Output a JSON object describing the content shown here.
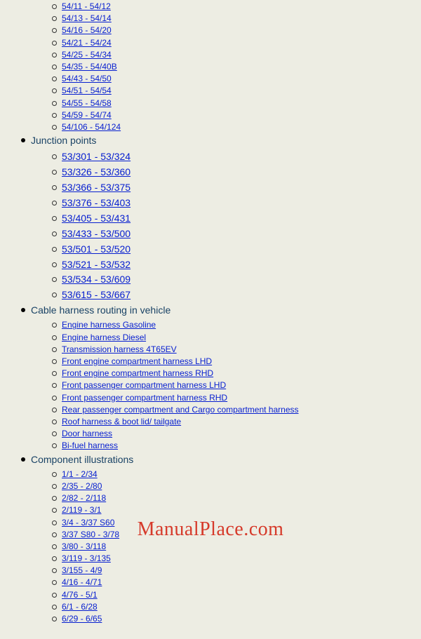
{
  "colors": {
    "background": "#edede3",
    "heading": "#194265",
    "link": "#0820d0",
    "bullet_solid": "#000000",
    "bullet_outline": "#333333",
    "watermark": "#d63a2a"
  },
  "typography": {
    "link_small_font_size": 12,
    "link_big_font_size": 14,
    "heading_font_size": 14,
    "watermark_font_size": 28,
    "font_family": "Arial, Helvetica, sans-serif",
    "watermark_font_family": "Georgia, Times New Roman, serif"
  },
  "watermark": "ManualPlace.com",
  "items": [
    {
      "label": "54/11 - 54/12",
      "level": 2,
      "variant": "small",
      "type": "link"
    },
    {
      "label": "54/13 - 54/14",
      "level": 2,
      "variant": "small",
      "type": "link"
    },
    {
      "label": "54/16 - 54/20",
      "level": 2,
      "variant": "small",
      "type": "link"
    },
    {
      "label": "54/21 - 54/24",
      "level": 2,
      "variant": "small",
      "type": "link"
    },
    {
      "label": "54/25 - 54/34",
      "level": 2,
      "variant": "small",
      "type": "link"
    },
    {
      "label": "54/35 - 54/40B",
      "level": 2,
      "variant": "small",
      "type": "link"
    },
    {
      "label": "54/43 - 54/50",
      "level": 2,
      "variant": "small",
      "type": "link"
    },
    {
      "label": "54/51 - 54/54",
      "level": 2,
      "variant": "small",
      "type": "link"
    },
    {
      "label": "54/55 - 54/58",
      "level": 2,
      "variant": "small",
      "type": "link"
    },
    {
      "label": "54/59 - 54/74",
      "level": 2,
      "variant": "small",
      "type": "link"
    },
    {
      "label": "54/106 - 54/124",
      "level": 2,
      "variant": "small",
      "type": "link"
    },
    {
      "label": "Junction points",
      "level": 1,
      "variant": "heading",
      "type": "heading"
    },
    {
      "label": "53/301 - 53/324",
      "level": 2,
      "variant": "big",
      "type": "link"
    },
    {
      "label": "53/326 - 53/360",
      "level": 2,
      "variant": "big",
      "type": "link"
    },
    {
      "label": "53/366 - 53/375",
      "level": 2,
      "variant": "big",
      "type": "link"
    },
    {
      "label": "53/376 - 53/403",
      "level": 2,
      "variant": "big",
      "type": "link"
    },
    {
      "label": "53/405 - 53/431",
      "level": 2,
      "variant": "big",
      "type": "link"
    },
    {
      "label": "53/433 - 53/500",
      "level": 2,
      "variant": "big",
      "type": "link"
    },
    {
      "label": "53/501 - 53/520",
      "level": 2,
      "variant": "big",
      "type": "link"
    },
    {
      "label": "53/521 - 53/532",
      "level": 2,
      "variant": "big",
      "type": "link"
    },
    {
      "label": "53/534 - 53/609",
      "level": 2,
      "variant": "big",
      "type": "link"
    },
    {
      "label": "53/615 - 53/667",
      "level": 2,
      "variant": "big",
      "type": "link"
    },
    {
      "label": "Cable harness routing in vehicle",
      "level": 1,
      "variant": "heading",
      "type": "heading"
    },
    {
      "label": "Engine harness Gasoline",
      "level": 2,
      "variant": "small",
      "type": "link"
    },
    {
      "label": "Engine harness Diesel",
      "level": 2,
      "variant": "small",
      "type": "link"
    },
    {
      "label": "Transmission harness 4T65EV",
      "level": 2,
      "variant": "small",
      "type": "link"
    },
    {
      "label": "Front engine compartment harness LHD",
      "level": 2,
      "variant": "small",
      "type": "link"
    },
    {
      "label": "Front engine compartment harness RHD",
      "level": 2,
      "variant": "small",
      "type": "link"
    },
    {
      "label": "Front passenger compartment harness LHD",
      "level": 2,
      "variant": "small",
      "type": "link"
    },
    {
      "label": "Front passenger compartment harness RHD",
      "level": 2,
      "variant": "small",
      "type": "link"
    },
    {
      "label": "Rear passenger compartment and Cargo compartment harness",
      "level": 2,
      "variant": "small",
      "type": "link"
    },
    {
      "label": "Roof harness & boot lid/ tailgate",
      "level": 2,
      "variant": "small",
      "type": "link"
    },
    {
      "label": "Door harness",
      "level": 2,
      "variant": "small",
      "type": "link"
    },
    {
      "label": "Bi-fuel harness",
      "level": 2,
      "variant": "small",
      "type": "link"
    },
    {
      "label": "Component illustrations",
      "level": 1,
      "variant": "heading",
      "type": "heading"
    },
    {
      "label": "1/1 - 2/34",
      "level": 2,
      "variant": "small",
      "type": "link"
    },
    {
      "label": "2/35 - 2/80",
      "level": 2,
      "variant": "small",
      "type": "link"
    },
    {
      "label": "2/82 - 2/118",
      "level": 2,
      "variant": "small",
      "type": "link"
    },
    {
      "label": "2/119 - 3/1",
      "level": 2,
      "variant": "small",
      "type": "link"
    },
    {
      "label": "3/4 - 3/37 S60",
      "level": 2,
      "variant": "small",
      "type": "link"
    },
    {
      "label": "3/37 S80 - 3/78",
      "level": 2,
      "variant": "small",
      "type": "link"
    },
    {
      "label": "3/80 - 3/118",
      "level": 2,
      "variant": "small",
      "type": "link"
    },
    {
      "label": "3/119 - 3/135",
      "level": 2,
      "variant": "small",
      "type": "link"
    },
    {
      "label": "3/155 - 4/9",
      "level": 2,
      "variant": "small",
      "type": "link"
    },
    {
      "label": "4/16 - 4/71",
      "level": 2,
      "variant": "small",
      "type": "link"
    },
    {
      "label": "4/76 - 5/1",
      "level": 2,
      "variant": "small",
      "type": "link"
    },
    {
      "label": "6/1 - 6/28",
      "level": 2,
      "variant": "small",
      "type": "link"
    },
    {
      "label": "6/29 - 6/65",
      "level": 2,
      "variant": "small",
      "type": "link"
    }
  ]
}
